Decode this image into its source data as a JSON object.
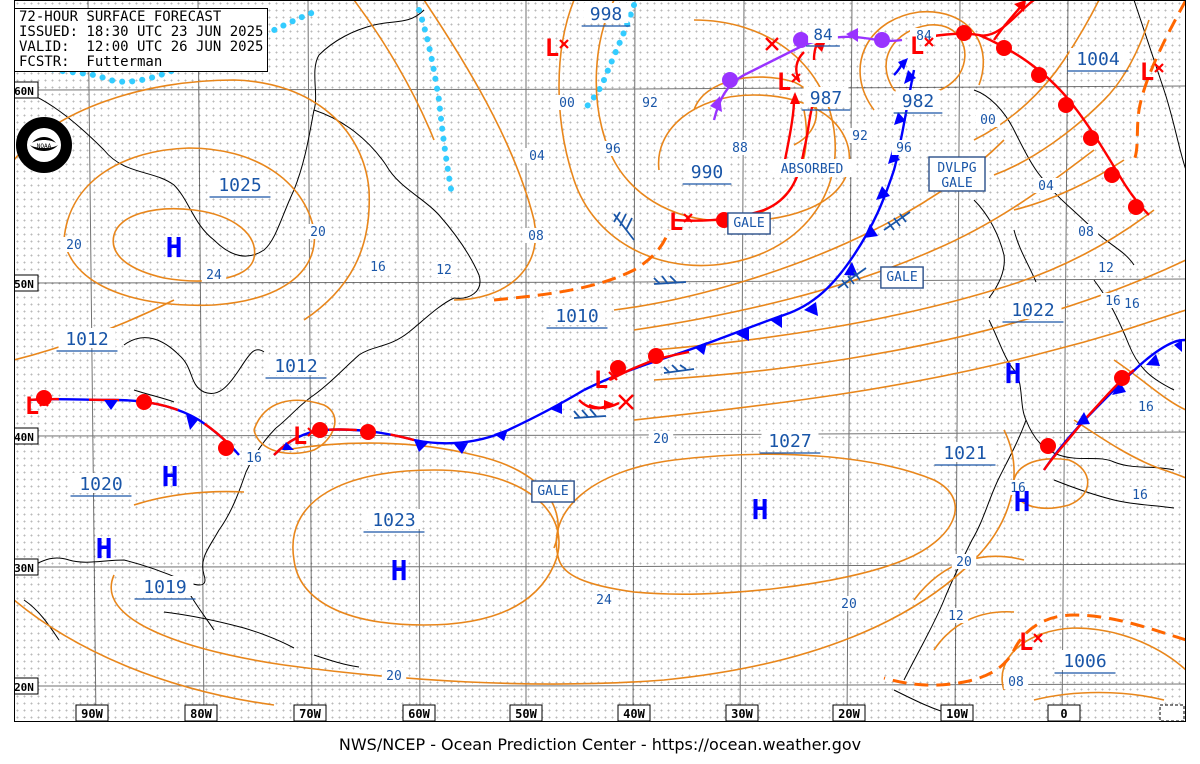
{
  "header": {
    "title": "72-HOUR SURFACE FORECAST",
    "issued": "ISSUED: 18:30 UTC 23 JUN 2025",
    "valid": "VALID:  12:00 UTC 26 JUN 2025",
    "forecaster": "FCSTR:  Futterman"
  },
  "logo_text": "NOAA",
  "credit": "NWS/NCEP - Ocean Prediction Center - https://ocean.weather.gov",
  "lat_labels": [
    "60N",
    "50N",
    "40N",
    "30N",
    "20N"
  ],
  "lon_labels": [
    "90W",
    "80W",
    "70W",
    "60W",
    "50W",
    "40W",
    "30W",
    "20W",
    "10W",
    "0"
  ],
  "corner_tag": "",
  "pressure_centers": [
    "998",
    "84",
    "84",
    "1004",
    "987",
    "982",
    "990",
    "1025",
    "1010",
    "1012",
    "1012",
    "1022",
    "1020",
    "1027",
    "1021",
    "1023",
    "1019",
    "1006"
  ],
  "isobar_labels": [
    "00",
    "92",
    "96",
    "04",
    "88",
    "92",
    "96",
    "00",
    "04",
    "08",
    "08",
    "12",
    "16",
    "20",
    "20",
    "24",
    "16",
    "12",
    "16",
    "20",
    "16",
    "16",
    "16",
    "20",
    "16",
    "12",
    "24",
    "20",
    "08",
    "20"
  ],
  "annotations": [
    "ABSORBED",
    "GALE",
    "DVLPG",
    "GALE",
    "GALE",
    "GALE"
  ],
  "symbols": {
    "high": "H",
    "low": "L"
  },
  "colors": {
    "isobar": "#e8861b",
    "warm_front": "#ff0000",
    "cold_front": "#0000ff",
    "occluded_front": "#9933ff",
    "ice_edge": "#33ccff",
    "label": "#1a56a8",
    "high": "#0000ff",
    "low": "#ff0000",
    "coastline": "#000000",
    "grid": "#000000"
  }
}
